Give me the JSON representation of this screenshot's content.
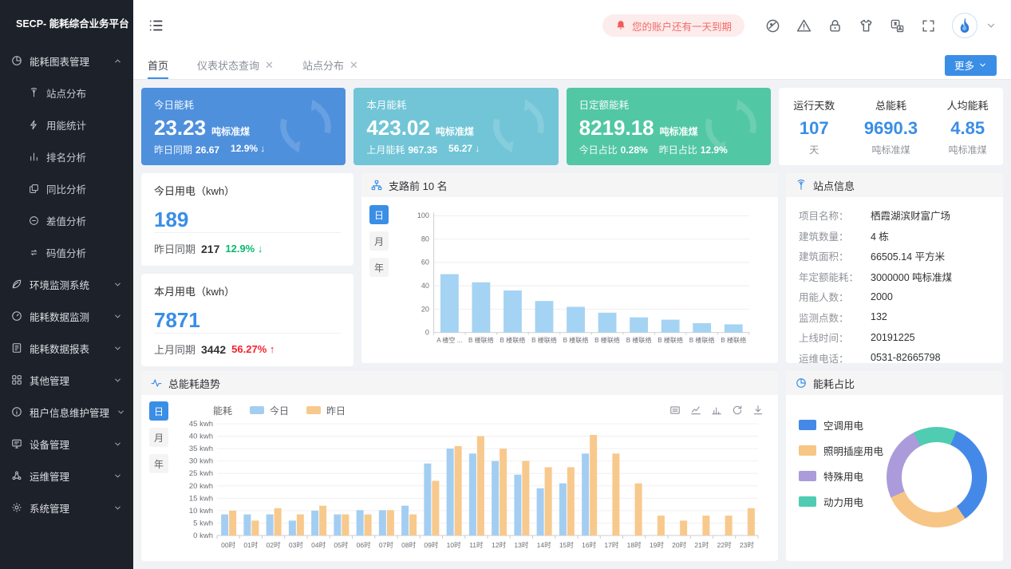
{
  "app": {
    "logo_title": "SECP- 能耗综合业务平台"
  },
  "header": {
    "alert_text": "您的账户还有一天到期",
    "icons": [
      "theme-icon",
      "warning-icon",
      "lock-icon",
      "tshirt-icon",
      "translate-icon",
      "fullscreen-icon"
    ]
  },
  "tabbar": {
    "tabs": [
      {
        "label": "首页",
        "closable": false,
        "active": true
      },
      {
        "label": "仪表状态查询",
        "closable": true,
        "active": false
      },
      {
        "label": "站点分布",
        "closable": true,
        "active": false
      }
    ],
    "more_label": "更多"
  },
  "sidebar": {
    "items": [
      {
        "label": "能耗图表管理",
        "icon": "pie",
        "expanded": true,
        "children": [
          {
            "label": "站点分布",
            "icon": "antenna"
          },
          {
            "label": "用能统计",
            "icon": "bolt"
          },
          {
            "label": "排名分析",
            "icon": "ranking"
          },
          {
            "label": "同比分析",
            "icon": "compare"
          },
          {
            "label": "差值分析",
            "icon": "minus"
          },
          {
            "label": "码值分析",
            "icon": "loop"
          }
        ]
      },
      {
        "label": "环境监测系统",
        "icon": "leaf"
      },
      {
        "label": "能耗数据监测",
        "icon": "gauge"
      },
      {
        "label": "能耗数据报表",
        "icon": "report"
      },
      {
        "label": "其他管理",
        "icon": "grid"
      },
      {
        "label": "租户信息维护管理",
        "icon": "info"
      },
      {
        "label": "设备管理",
        "icon": "monitor"
      },
      {
        "label": "运维管理",
        "icon": "nodes"
      },
      {
        "label": "系统管理",
        "icon": "gear"
      }
    ]
  },
  "kpi_cards": [
    {
      "title": "今日能耗",
      "value": "23.23",
      "unit": "吨标准煤",
      "color": "#4e90dc",
      "footer": [
        {
          "label": "昨日同期",
          "value": "26.67"
        },
        {
          "label": "",
          "value": "12.9% ↓"
        }
      ]
    },
    {
      "title": "本月能耗",
      "value": "423.02",
      "unit": "吨标准煤",
      "color": "#71c5d7",
      "footer": [
        {
          "label": "上月能耗",
          "value": "967.35"
        },
        {
          "label": "",
          "value": "56.27 ↓"
        }
      ]
    },
    {
      "title": "日定额能耗",
      "value": "8219.18",
      "unit": "吨标准煤",
      "color": "#52c7a3",
      "footer": [
        {
          "label": "今日占比",
          "value": "0.28%"
        },
        {
          "label": "昨日占比",
          "value": "12.9%"
        }
      ]
    }
  ],
  "summary_card": {
    "items": [
      {
        "label": "运行天数",
        "value": "107",
        "unit": "天"
      },
      {
        "label": "总能耗",
        "value": "9690.3",
        "unit": "吨标准煤"
      },
      {
        "label": "人均能耗",
        "value": "4.85",
        "unit": "吨标准煤"
      }
    ]
  },
  "usage_cards": [
    {
      "title": "今日用电（kwh）",
      "value": "189",
      "compare_label": "昨日同期",
      "compare_value": "217",
      "delta": "12.9% ↓",
      "delta_dir": "down"
    },
    {
      "title": "本月用电（kwh）",
      "value": "7871",
      "compare_label": "上月同期",
      "compare_value": "3442",
      "delta": "56.27% ↑",
      "delta_dir": "up"
    }
  ],
  "site_info": {
    "title": "站点信息",
    "rows": [
      {
        "label": "项目名称：",
        "value": "栖霞湖滨财富广场"
      },
      {
        "label": "建筑数量：",
        "value": "4 栋"
      },
      {
        "label": "建筑面积：",
        "value": "66505.14 平方米"
      },
      {
        "label": "年定额能耗：",
        "value": "3000000 吨标准煤"
      },
      {
        "label": "用能人数：",
        "value": "2000"
      },
      {
        "label": "监测点数：",
        "value": "132"
      },
      {
        "label": "上线时间：",
        "value": "20191225"
      },
      {
        "label": "运维电话：",
        "value": "0531-82665798"
      }
    ]
  },
  "chart_data": [
    {
      "type": "bar",
      "title": "支路前 10 名",
      "period_buttons": [
        "日",
        "月",
        "年"
      ],
      "active_period": "日",
      "categories": [
        "A 楼空 ...",
        "B 楼联络",
        "B 楼联络",
        "B 楼联络",
        "B 楼联络",
        "B 楼联络",
        "B 楼联络",
        "B 楼联络",
        "B 楼联络",
        "B 楼联络"
      ],
      "values": [
        50,
        43,
        36,
        27,
        22,
        17,
        13,
        11,
        8,
        7
      ],
      "ylim": [
        0,
        100
      ],
      "yticks": [
        0,
        20,
        40,
        60,
        80,
        100
      ],
      "bar_color": "#a5d3f3",
      "grid": true
    },
    {
      "type": "bar",
      "title": "总能耗趋势",
      "ylabel": "能耗",
      "unit": "kwh",
      "period_buttons": [
        "日",
        "月",
        "年"
      ],
      "active_period": "日",
      "categories": [
        "00时",
        "01时",
        "02时",
        "03时",
        "04时",
        "05时",
        "06时",
        "07时",
        "08时",
        "09时",
        "10时",
        "11时",
        "12时",
        "13时",
        "14时",
        "15时",
        "16时",
        "17时",
        "18时",
        "19时",
        "20时",
        "21时",
        "22时",
        "23时"
      ],
      "series": [
        {
          "name": "今日",
          "color": "#a3cef2",
          "values": [
            8.5,
            8.5,
            8.5,
            6,
            10,
            8.5,
            10.2,
            10.2,
            12,
            29,
            35,
            33,
            30,
            24.5,
            19,
            21,
            33,
            0,
            0,
            0,
            0,
            0,
            0,
            0
          ]
        },
        {
          "name": "昨日",
          "color": "#f8c98c",
          "values": [
            10,
            6,
            11,
            8.5,
            12,
            8.5,
            8.5,
            10.2,
            8.5,
            22,
            36,
            40,
            35,
            30,
            27.5,
            27.5,
            40.5,
            33,
            21,
            8,
            6,
            8,
            8,
            11
          ]
        }
      ],
      "ylim": [
        0,
        45
      ],
      "ytick_step": 5,
      "legend_position": "top",
      "grid": true,
      "toolbox": [
        "data-view-icon",
        "line-chart-icon",
        "bar-chart-icon",
        "refresh-icon",
        "download-icon"
      ]
    },
    {
      "type": "pie",
      "title": "能耗占比",
      "start_angle_deg": 23,
      "slices": [
        {
          "label": "空调用电",
          "color": "#4589e8",
          "percent": 34
        },
        {
          "label": "照明插座用电",
          "color": "#f7c585",
          "percent": 28
        },
        {
          "label": "特殊用电",
          "color": "#ab9bdb",
          "percent": 24
        },
        {
          "label": "动力用电",
          "color": "#4fccb1",
          "percent": 14
        }
      ]
    }
  ],
  "colors": {
    "accent": "#3a8ee6",
    "alert_red": "#f46a6a",
    "delta_green": "#0ab96f",
    "delta_red": "#f5222d",
    "sidebar_bg": "#1d2129"
  }
}
